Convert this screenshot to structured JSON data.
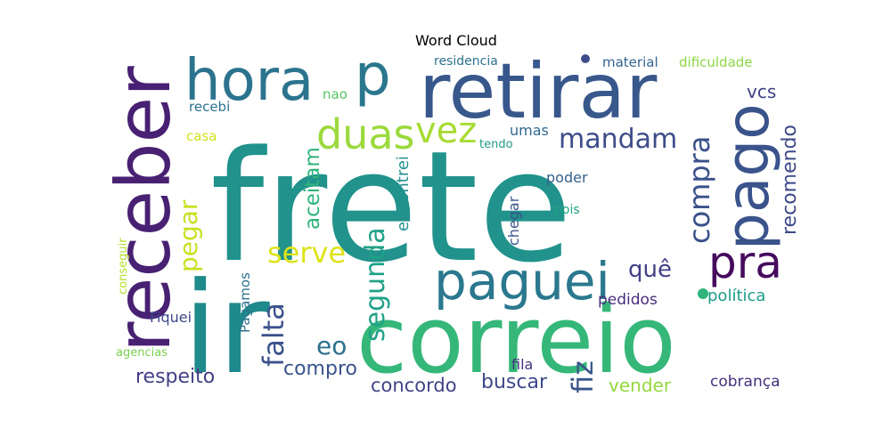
{
  "chart_data": {
    "type": "word_cloud",
    "title": "Word Cloud",
    "colormap": "viridis",
    "words": [
      {
        "text": "frete",
        "color": "#21928c",
        "weight": 100
      },
      {
        "text": "ir",
        "color": "#1f8a8c",
        "weight": 82
      },
      {
        "text": "correio",
        "color": "#35b779",
        "weight": 62
      },
      {
        "text": "retirar",
        "color": "#38588c",
        "weight": 52
      },
      {
        "text": "receber",
        "color": "#482173",
        "weight": 50
      },
      {
        "text": "hora",
        "color": "#2c738e",
        "weight": 38
      },
      {
        "text": "p",
        "color": "#2a778e",
        "weight": 38
      },
      {
        "text": "pago",
        "color": "#3a538b",
        "weight": 38
      },
      {
        "text": "paguei",
        "color": "#2a788e",
        "weight": 34
      },
      {
        "text": "pra",
        "color": "#450a5d",
        "weight": 30
      },
      {
        "text": "duas",
        "color": "#9bd93c",
        "weight": 28
      },
      {
        "text": "vez",
        "color": "#a8db34",
        "weight": 26
      },
      {
        "text": "mandam",
        "color": "#3e4c8a",
        "weight": 20
      },
      {
        "text": "compra",
        "color": "#3b518b",
        "weight": 20
      },
      {
        "text": "falta",
        "color": "#3b528b",
        "weight": 20
      },
      {
        "text": "serve",
        "color": "#dde318",
        "weight": 20
      },
      {
        "text": "segunda",
        "color": "#1fa187",
        "weight": 20
      },
      {
        "text": "fiz",
        "color": "#39568c",
        "weight": 20
      },
      {
        "text": "pegar",
        "color": "#c8e020",
        "weight": 18
      },
      {
        "text": "eo",
        "color": "#2d708e",
        "weight": 17
      },
      {
        "text": "quê",
        "color": "#424086",
        "weight": 17
      },
      {
        "text": "recomendo",
        "color": "#3e4a89",
        "weight": 15
      },
      {
        "text": "aceitam",
        "color": "#2fb47c",
        "weight": 15
      },
      {
        "text": "respeito",
        "color": "#433e85",
        "weight": 15
      },
      {
        "text": "compro",
        "color": "#3a548c",
        "weight": 14
      },
      {
        "text": "concordo",
        "color": "#414487",
        "weight": 14
      },
      {
        "text": "buscar",
        "color": "#3e4989",
        "weight": 14
      },
      {
        "text": "vender",
        "color": "#95d840",
        "weight": 13
      },
      {
        "text": "vcs",
        "color": "#414287",
        "weight": 13
      },
      {
        "text": "encontrei",
        "color": "#21908d",
        "weight": 11
      },
      {
        "text": "cobrança",
        "color": "#46327e",
        "weight": 11
      },
      {
        "text": "política",
        "color": "#1e9c89",
        "weight": 11
      },
      {
        "text": "pedidos",
        "color": "#472d7b",
        "weight": 11
      },
      {
        "text": "poder",
        "color": "#34608d",
        "weight": 11
      },
      {
        "text": "chegar",
        "color": "#3b528b",
        "weight": 10
      },
      {
        "text": "umas",
        "color": "#31688e",
        "weight": 10
      },
      {
        "text": "Fiquei",
        "color": "#3f4889",
        "weight": 10
      },
      {
        "text": "Pagamos",
        "color": "#2c728e",
        "weight": 9
      },
      {
        "text": "fila",
        "color": "#46337e",
        "weight": 10
      },
      {
        "text": "casa",
        "color": "#d2e21b",
        "weight": 9
      },
      {
        "text": "recebi",
        "color": "#2d718e",
        "weight": 9
      },
      {
        "text": "nao",
        "color": "#56c667",
        "weight": 9
      },
      {
        "text": "material",
        "color": "#33638d",
        "weight": 9
      },
      {
        "text": "dificuldade",
        "color": "#8bd646",
        "weight": 9
      },
      {
        "text": "residencia",
        "color": "#2c728e",
        "weight": 8
      },
      {
        "text": "pois",
        "color": "#20a386",
        "weight": 8
      },
      {
        "text": "tendo",
        "color": "#1f9a8a",
        "weight": 7
      },
      {
        "text": "conseguir",
        "color": "#b5de2b",
        "weight": 7
      },
      {
        "text": "agencias",
        "color": "#7ad151",
        "weight": 7
      }
    ]
  }
}
